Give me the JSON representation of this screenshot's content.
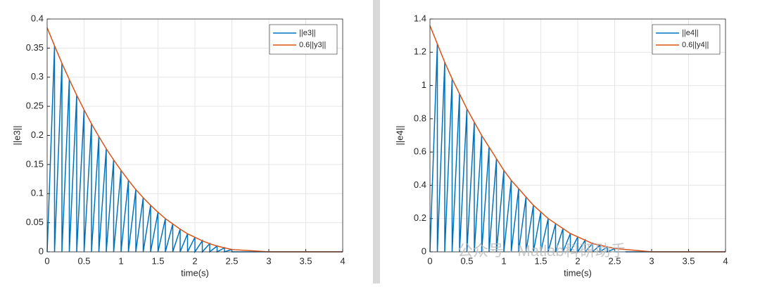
{
  "chart_data": [
    {
      "type": "line",
      "xlabel": "time(s)",
      "ylabel": "||e3||",
      "xlim": [
        0,
        4
      ],
      "xticks": [
        0,
        0.5,
        1,
        1.5,
        2,
        2.5,
        3,
        3.5,
        4
      ],
      "ylim": [
        0,
        0.4
      ],
      "yticks": [
        0,
        0.05,
        0.1,
        0.15,
        0.2,
        0.25,
        0.3,
        0.35,
        0.4
      ],
      "grid": true,
      "legend": "upper right",
      "series": [
        {
          "name": "||e3||",
          "color": "#0072BD",
          "x": [
            0,
            0.1,
            0.1,
            0.2,
            0.2,
            0.3,
            0.3,
            0.4,
            0.4,
            0.5,
            0.5,
            0.6,
            0.6,
            0.7,
            0.7,
            0.8,
            0.8,
            0.9,
            0.9,
            1.0,
            1.0,
            1.1,
            1.1,
            1.2,
            1.2,
            1.3,
            1.3,
            1.4,
            1.4,
            1.5,
            1.5,
            1.6,
            1.6,
            1.7,
            1.7,
            1.8,
            1.8,
            1.9,
            1.9,
            2.0,
            2.0,
            2.1,
            2.1,
            2.2,
            2.2,
            2.3,
            2.3,
            2.4,
            2.4,
            2.5,
            2.5,
            4
          ],
          "values": [
            0,
            0.354,
            0,
            0.324,
            0,
            0.296,
            0,
            0.269,
            0,
            0.244,
            0,
            0.22,
            0,
            0.198,
            0,
            0.177,
            0,
            0.158,
            0,
            0.14,
            0,
            0.123,
            0,
            0.107,
            0,
            0.093,
            0,
            0.08,
            0,
            0.068,
            0,
            0.057,
            0,
            0.048,
            0,
            0.039,
            0,
            0.031,
            0,
            0.025,
            0,
            0.019,
            0,
            0.014,
            0,
            0.01,
            0,
            0.007,
            0,
            0.004,
            0,
            0
          ]
        },
        {
          "name": "0.6||y3||",
          "color": "#D95319",
          "x": [
            0,
            0.1,
            0.2,
            0.3,
            0.4,
            0.5,
            0.6,
            0.7,
            0.8,
            0.9,
            1.0,
            1.1,
            1.2,
            1.3,
            1.4,
            1.5,
            1.6,
            1.7,
            1.8,
            1.9,
            2.0,
            2.1,
            2.2,
            2.3,
            2.4,
            2.5,
            3,
            4
          ],
          "values": [
            0.385,
            0.354,
            0.324,
            0.296,
            0.269,
            0.244,
            0.22,
            0.198,
            0.177,
            0.158,
            0.14,
            0.123,
            0.107,
            0.093,
            0.08,
            0.068,
            0.057,
            0.048,
            0.039,
            0.031,
            0.025,
            0.019,
            0.014,
            0.01,
            0.007,
            0.004,
            0,
            0
          ]
        }
      ]
    },
    {
      "type": "line",
      "xlabel": "time(s)",
      "ylabel": "||e4||",
      "xlim": [
        0,
        4
      ],
      "xticks": [
        0,
        0.5,
        1,
        1.5,
        2,
        2.5,
        3,
        3.5,
        4
      ],
      "ylim": [
        0,
        1.4
      ],
      "yticks": [
        0,
        0.2,
        0.4,
        0.6,
        0.8,
        1,
        1.2,
        1.4
      ],
      "grid": true,
      "legend": "upper right",
      "series": [
        {
          "name": "||e4||",
          "color": "#0072BD",
          "x": [
            0,
            0.1,
            0.1,
            0.2,
            0.2,
            0.3,
            0.3,
            0.4,
            0.4,
            0.5,
            0.5,
            0.6,
            0.6,
            0.7,
            0.7,
            0.8,
            0.8,
            0.9,
            0.9,
            1.0,
            1.0,
            1.1,
            1.1,
            1.2,
            1.2,
            1.3,
            1.3,
            1.4,
            1.4,
            1.5,
            1.5,
            1.6,
            1.6,
            1.7,
            1.7,
            1.8,
            1.8,
            1.9,
            1.9,
            2.0,
            2.0,
            2.1,
            2.1,
            2.2,
            2.2,
            2.3,
            2.3,
            2.4,
            2.4,
            2.5,
            2.5,
            4
          ],
          "values": [
            0,
            1.25,
            0,
            1.14,
            0,
            1.04,
            0,
            0.95,
            0,
            0.86,
            0,
            0.78,
            0,
            0.7,
            0,
            0.63,
            0,
            0.56,
            0,
            0.49,
            0,
            0.43,
            0,
            0.38,
            0,
            0.33,
            0,
            0.28,
            0,
            0.24,
            0,
            0.2,
            0,
            0.17,
            0,
            0.14,
            0,
            0.11,
            0,
            0.09,
            0,
            0.07,
            0,
            0.05,
            0,
            0.04,
            0,
            0.03,
            0,
            0.02,
            0,
            0
          ]
        },
        {
          "name": "0.6||y4||",
          "color": "#D95319",
          "x": [
            0,
            0.1,
            0.2,
            0.3,
            0.4,
            0.5,
            0.6,
            0.7,
            0.8,
            0.9,
            1.0,
            1.1,
            1.2,
            1.3,
            1.4,
            1.5,
            1.6,
            1.7,
            1.8,
            1.9,
            2.0,
            2.1,
            2.2,
            2.3,
            2.4,
            2.5,
            3,
            4
          ],
          "values": [
            1.36,
            1.25,
            1.14,
            1.04,
            0.95,
            0.86,
            0.78,
            0.7,
            0.63,
            0.56,
            0.49,
            0.43,
            0.38,
            0.33,
            0.28,
            0.24,
            0.2,
            0.17,
            0.14,
            0.11,
            0.09,
            0.07,
            0.05,
            0.04,
            0.03,
            0.02,
            0,
            0
          ]
        }
      ]
    }
  ],
  "watermark": "公众号 · Matlab科研助手"
}
